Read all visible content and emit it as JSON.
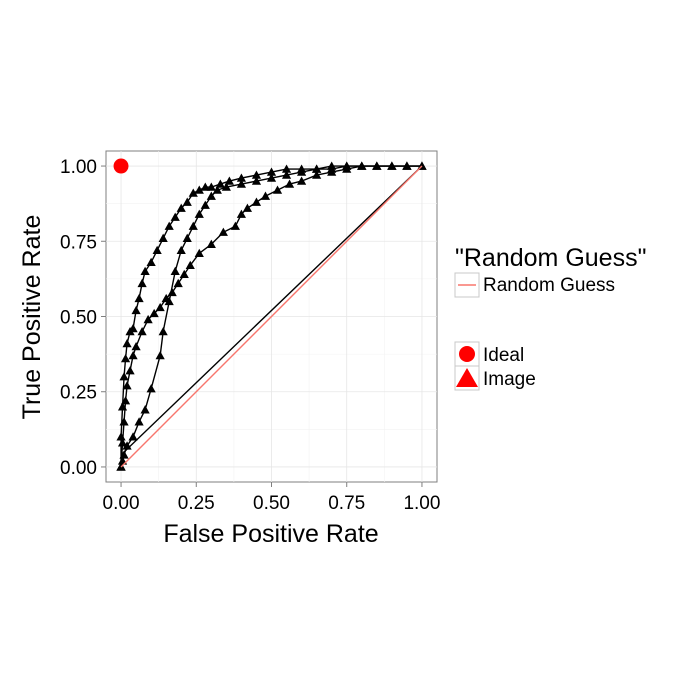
{
  "chart_data": {
    "type": "line",
    "title": "",
    "xlabel": "False Positive Rate",
    "ylabel": "True Positive Rate",
    "xlim": [
      -0.05,
      1.05
    ],
    "ylim": [
      -0.05,
      1.05
    ],
    "grid": true,
    "legend_placement": "right",
    "x_ticks": [
      0,
      0.25,
      0.5,
      0.75,
      1
    ],
    "x_tick_labels": [
      "0.00",
      "0.25",
      "0.50",
      "0.75",
      "1.00"
    ],
    "y_ticks": [
      0,
      0.25,
      0.5,
      0.75,
      1
    ],
    "y_tick_labels": [
      "0.00",
      "0.25",
      "0.50",
      "0.75",
      "1.00"
    ],
    "legend": {
      "line_title": "\"Random Guess\"",
      "line_entries": [
        {
          "label": "Random Guess",
          "color": "#f8766d"
        }
      ],
      "shape_entries": [
        {
          "label": "Ideal",
          "shape": "circle",
          "color": "#ff0000"
        },
        {
          "label": "Image",
          "shape": "triangle",
          "color": "#ff0000"
        }
      ]
    },
    "series": [
      {
        "kind": "reference-line",
        "color": "#f8766d",
        "x": [
          0,
          1
        ],
        "y": [
          0,
          1
        ]
      },
      {
        "kind": "point",
        "shape": "circle",
        "color": "#ff0000",
        "x": [
          0
        ],
        "y": [
          1
        ]
      },
      {
        "kind": "line-points",
        "shape": "triangle",
        "color": "#000000",
        "x": [
          0,
          0,
          0.005,
          0.01,
          0.015,
          0.02,
          0.03,
          0.04,
          0.05,
          0.06,
          0.07,
          0.08,
          0.1,
          0.12,
          0.14,
          0.16,
          0.18,
          0.2,
          0.22,
          0.24,
          0.26,
          0.28,
          0.3,
          0.33,
          0.36,
          0.4,
          0.45,
          0.5,
          0.55,
          0.6,
          0.65,
          0.7,
          0.75,
          0.8,
          0.85,
          0.9,
          0.95,
          1
        ],
        "y": [
          0,
          0.1,
          0.2,
          0.3,
          0.36,
          0.41,
          0.45,
          0.46,
          0.52,
          0.56,
          0.61,
          0.65,
          0.68,
          0.72,
          0.76,
          0.8,
          0.83,
          0.86,
          0.88,
          0.91,
          0.92,
          0.93,
          0.93,
          0.94,
          0.95,
          0.96,
          0.97,
          0.98,
          0.99,
          0.99,
          0.99,
          1,
          1,
          1,
          1,
          1,
          1,
          1
        ]
      },
      {
        "kind": "line-points",
        "shape": "triangle",
        "color": "#000000",
        "x": [
          0,
          0.005,
          0.01,
          0.015,
          0.02,
          0.03,
          0.04,
          0.05,
          0.07,
          0.09,
          0.11,
          0.13,
          0.15,
          0.17,
          0.19,
          0.21,
          0.23,
          0.26,
          0.3,
          0.34,
          0.38,
          0.4,
          0.42,
          0.45,
          0.48,
          0.52,
          0.56,
          0.6,
          0.65,
          0.7,
          0.75,
          0.8,
          0.85,
          0.9,
          0.95,
          1
        ],
        "y": [
          0,
          0.08,
          0.15,
          0.22,
          0.27,
          0.32,
          0.37,
          0.4,
          0.45,
          0.49,
          0.51,
          0.53,
          0.56,
          0.58,
          0.61,
          0.64,
          0.67,
          0.71,
          0.74,
          0.78,
          0.8,
          0.84,
          0.86,
          0.88,
          0.9,
          0.92,
          0.94,
          0.95,
          0.97,
          0.98,
          0.99,
          1,
          1,
          1,
          1,
          1
        ]
      },
      {
        "kind": "line-points",
        "shape": "triangle",
        "color": "#000000",
        "x": [
          0,
          0.005,
          0.01,
          0.02,
          0.04,
          0.06,
          0.08,
          0.1,
          0.13,
          0.14,
          0.16,
          0.18,
          0.2,
          0.22,
          0.24,
          0.26,
          0.28,
          0.3,
          0.32,
          0.35,
          0.4,
          0.45,
          0.5,
          0.55,
          0.6,
          0.65,
          0.7,
          0.75,
          0.8,
          0.85,
          0.9,
          0.95,
          1
        ],
        "y": [
          0,
          0.02,
          0.04,
          0.07,
          0.1,
          0.15,
          0.19,
          0.26,
          0.37,
          0.45,
          0.55,
          0.65,
          0.72,
          0.76,
          0.8,
          0.84,
          0.87,
          0.9,
          0.92,
          0.93,
          0.94,
          0.95,
          0.96,
          0.97,
          0.98,
          0.99,
          0.99,
          1,
          1,
          1,
          1,
          1,
          1
        ]
      },
      {
        "kind": "line",
        "color": "#000000",
        "x": [
          0,
          1
        ],
        "y": [
          0.04,
          1
        ]
      }
    ]
  }
}
